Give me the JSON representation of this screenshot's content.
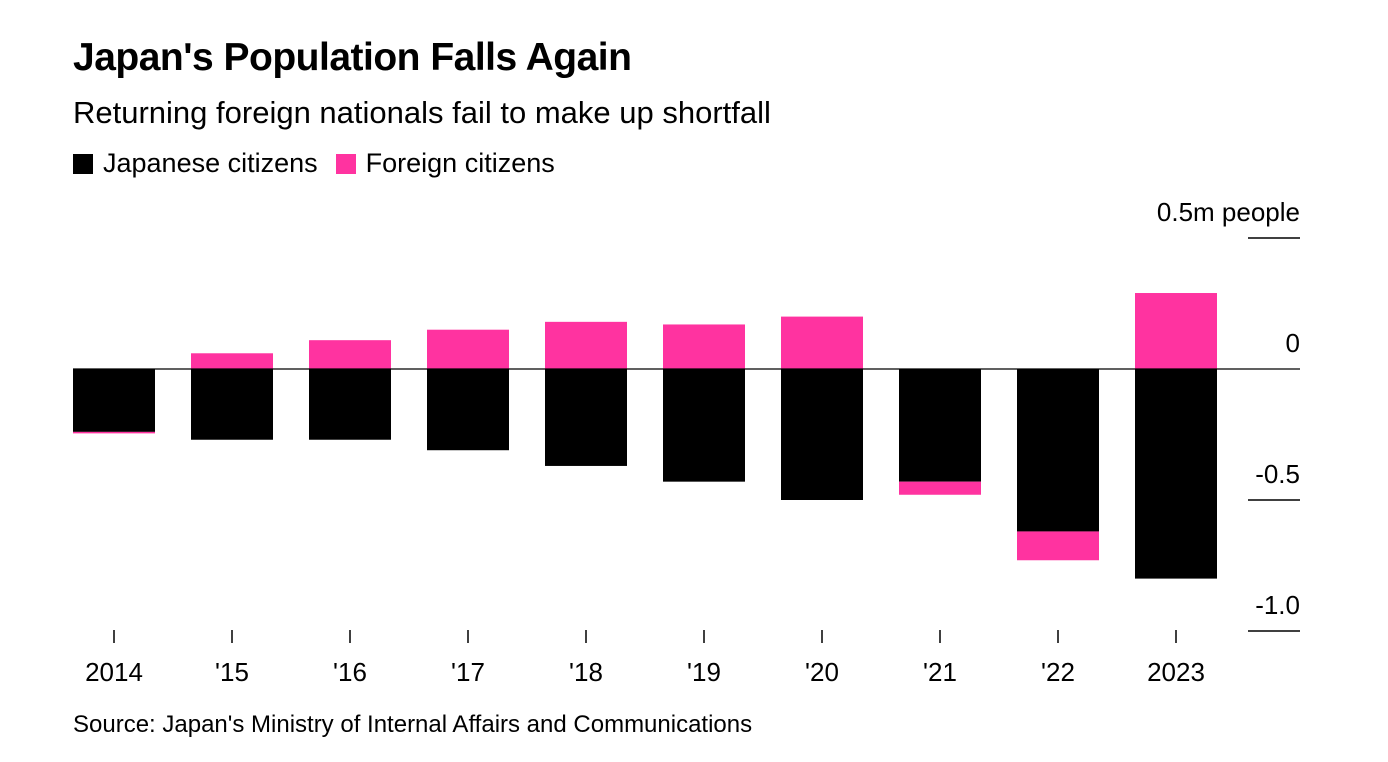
{
  "title": "Japan's Population Falls Again",
  "subtitle": "Returning foreign nationals fail to make up shortfall",
  "source": "Source: Japan's Ministry of Internal Affairs and Communications",
  "colors": {
    "japanese": "#000000",
    "foreign": "#ff33a0"
  },
  "chart_data": {
    "type": "bar",
    "stacked": true,
    "categories": [
      "2014",
      "'15",
      "'16",
      "'17",
      "'18",
      "'19",
      "'20",
      "'21",
      "'22",
      "2023"
    ],
    "series": [
      {
        "name": "Japanese citizens",
        "color": "#000000",
        "values": [
          -0.24,
          -0.27,
          -0.27,
          -0.31,
          -0.37,
          -0.43,
          -0.5,
          -0.43,
          -0.62,
          -0.8
        ]
      },
      {
        "name": "Foreign citizens",
        "color": "#ff33a0",
        "values": [
          -0.005,
          0.06,
          0.11,
          0.15,
          0.18,
          0.17,
          0.2,
          -0.05,
          -0.11,
          0.29
        ]
      }
    ],
    "y_axis": {
      "position": "right",
      "unit_label": "0.5m people",
      "ticks": [
        0.5,
        0,
        -0.5,
        -1.0
      ],
      "tick_labels": [
        "0.5m people",
        "0",
        "-0.5",
        "-1.0"
      ],
      "ylim": [
        -1.0,
        0.5
      ]
    },
    "legend_placement": "top-left",
    "grid": false
  }
}
